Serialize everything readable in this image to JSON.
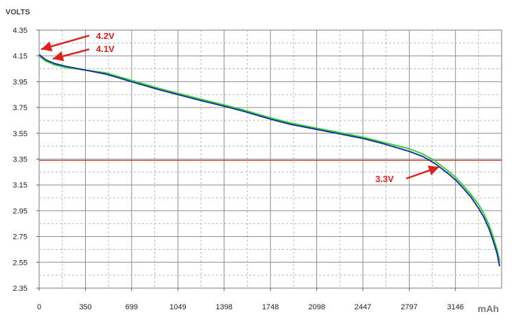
{
  "chart_data": {
    "type": "line",
    "title": "",
    "ylabel": "VOLTS",
    "xlabel": "mAh",
    "xlim": [
      0,
      3495
    ],
    "ylim": [
      2.35,
      4.35
    ],
    "x_ticks": [
      "0",
      "350",
      "699",
      "1049",
      "1398",
      "1748",
      "2098",
      "2447",
      "2797",
      "3146"
    ],
    "y_ticks": [
      "4.35",
      "4.15",
      "3.95",
      "3.75",
      "3.55",
      "3.35",
      "3.15",
      "2.95",
      "2.75",
      "2.55",
      "2.35"
    ],
    "grid": true,
    "reference_line": {
      "y": 3.34,
      "color": "#c0392b"
    },
    "colors": {
      "series1": "#1a2fa3",
      "series2": "#2fd42f",
      "annotation": "#e0201b",
      "reference": "#c0392b"
    },
    "series": [
      {
        "color": "#1a2fa3",
        "x": [
          0,
          50,
          120,
          200,
          350,
          500,
          600,
          699,
          800,
          900,
          1049,
          1200,
          1398,
          1550,
          1748,
          1900,
          2098,
          2250,
          2447,
          2600,
          2797,
          2900,
          3000,
          3100,
          3146,
          3200,
          3260,
          3320,
          3360,
          3400,
          3430,
          3460,
          3480
        ],
        "y": [
          4.16,
          4.12,
          4.09,
          4.07,
          4.04,
          4.01,
          3.98,
          3.95,
          3.92,
          3.89,
          3.85,
          3.81,
          3.76,
          3.72,
          3.66,
          3.62,
          3.58,
          3.55,
          3.51,
          3.47,
          3.41,
          3.37,
          3.31,
          3.23,
          3.19,
          3.13,
          3.06,
          2.97,
          2.9,
          2.81,
          2.72,
          2.62,
          2.52
        ]
      },
      {
        "color": "#2fd42f",
        "x": [
          0,
          50,
          120,
          200,
          350,
          500,
          600,
          699,
          800,
          900,
          1049,
          1200,
          1398,
          1550,
          1748,
          1900,
          2098,
          2250,
          2447,
          2600,
          2797,
          2900,
          3000,
          3100,
          3146,
          3200,
          3260,
          3320,
          3360,
          3400,
          3430,
          3460,
          3480
        ],
        "y": [
          4.15,
          4.11,
          4.08,
          4.06,
          4.04,
          4.02,
          3.99,
          3.96,
          3.93,
          3.9,
          3.86,
          3.82,
          3.77,
          3.73,
          3.67,
          3.63,
          3.59,
          3.56,
          3.52,
          3.48,
          3.43,
          3.39,
          3.33,
          3.25,
          3.21,
          3.15,
          3.08,
          3.0,
          2.93,
          2.84,
          2.75,
          2.65,
          2.56
        ]
      }
    ],
    "annotations": [
      {
        "text": "4.2V",
        "x": 0,
        "y": 4.17
      },
      {
        "text": "4.1V",
        "x": 80,
        "y": 4.12
      },
      {
        "text": "3.3V",
        "x": 3030,
        "y": 3.3
      }
    ]
  }
}
